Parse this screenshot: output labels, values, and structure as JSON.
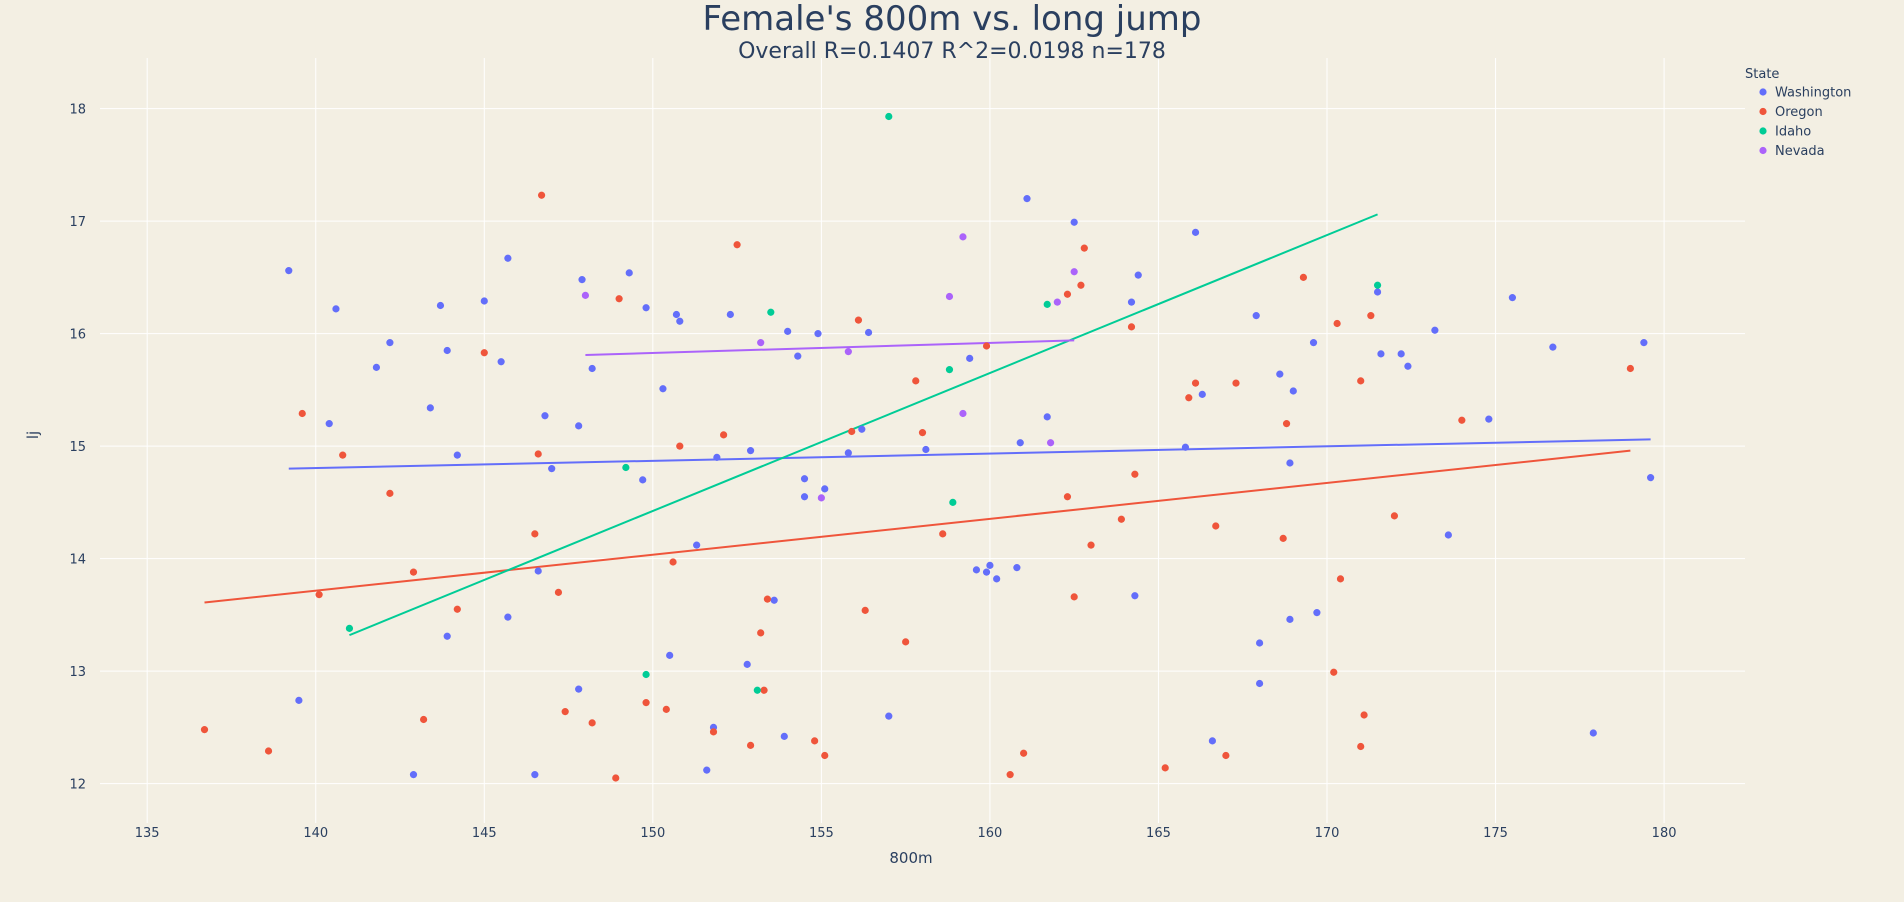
{
  "chart_data": {
    "type": "scatter",
    "title": "Female's 800m vs. long jump",
    "subtitle": "Overall R=0.1407 R^2=0.0198 n=178",
    "xlabel": "800m",
    "ylabel": "lj",
    "xlim": [
      133.6,
      182.4
    ],
    "ylim": [
      11.65,
      18.45
    ],
    "xticks": [
      135,
      140,
      145,
      150,
      155,
      160,
      165,
      170,
      175,
      180
    ],
    "yticks": [
      12,
      13,
      14,
      15,
      16,
      17,
      18
    ],
    "grid": true,
    "legend_title": "State",
    "legend_position": "top-right",
    "series": [
      {
        "name": "Washington",
        "color": "#636efa",
        "points": [
          [
            139.2,
            16.56
          ],
          [
            139.5,
            12.74
          ],
          [
            140.4,
            15.2
          ],
          [
            140.6,
            16.22
          ],
          [
            141.8,
            15.7
          ],
          [
            142.2,
            15.92
          ],
          [
            142.9,
            12.08
          ],
          [
            143.4,
            15.34
          ],
          [
            143.7,
            16.25
          ],
          [
            143.9,
            15.85
          ],
          [
            143.9,
            13.31
          ],
          [
            144.2,
            14.92
          ],
          [
            145.0,
            16.29
          ],
          [
            145.5,
            15.75
          ],
          [
            145.7,
            16.67
          ],
          [
            145.7,
            13.48
          ],
          [
            146.5,
            12.08
          ],
          [
            146.6,
            13.89
          ],
          [
            146.8,
            15.27
          ],
          [
            147.0,
            14.8
          ],
          [
            147.8,
            12.84
          ],
          [
            147.8,
            15.18
          ],
          [
            147.9,
            16.48
          ],
          [
            148.2,
            15.69
          ],
          [
            149.3,
            16.54
          ],
          [
            149.7,
            14.7
          ],
          [
            149.8,
            16.23
          ],
          [
            150.3,
            15.51
          ],
          [
            150.5,
            13.14
          ],
          [
            150.7,
            16.17
          ],
          [
            150.8,
            16.11
          ],
          [
            151.3,
            14.12
          ],
          [
            151.6,
            12.12
          ],
          [
            151.8,
            12.5
          ],
          [
            151.9,
            14.9
          ],
          [
            152.3,
            16.17
          ],
          [
            152.8,
            13.06
          ],
          [
            152.9,
            14.96
          ],
          [
            153.6,
            13.63
          ],
          [
            153.9,
            12.42
          ],
          [
            154.0,
            16.02
          ],
          [
            154.3,
            15.8
          ],
          [
            154.5,
            14.71
          ],
          [
            154.5,
            14.55
          ],
          [
            154.9,
            16.0
          ],
          [
            155.1,
            14.62
          ],
          [
            155.8,
            14.94
          ],
          [
            156.2,
            15.15
          ],
          [
            156.4,
            16.01
          ],
          [
            157.0,
            12.6
          ],
          [
            158.1,
            14.97
          ],
          [
            159.4,
            15.78
          ],
          [
            159.6,
            13.9
          ],
          [
            159.9,
            13.88
          ],
          [
            160.0,
            13.94
          ],
          [
            160.2,
            13.82
          ],
          [
            160.8,
            13.92
          ],
          [
            160.9,
            15.03
          ],
          [
            161.1,
            17.2
          ],
          [
            161.7,
            15.26
          ],
          [
            162.5,
            16.99
          ],
          [
            164.2,
            16.28
          ],
          [
            164.3,
            13.67
          ],
          [
            164.4,
            16.52
          ],
          [
            165.8,
            14.99
          ],
          [
            166.1,
            16.9
          ],
          [
            166.3,
            15.46
          ],
          [
            166.6,
            12.38
          ],
          [
            167.9,
            16.16
          ],
          [
            168.0,
            13.25
          ],
          [
            168.0,
            12.89
          ],
          [
            168.6,
            15.64
          ],
          [
            168.9,
            14.85
          ],
          [
            168.9,
            13.46
          ],
          [
            169.0,
            15.49
          ],
          [
            169.6,
            15.92
          ],
          [
            169.7,
            13.52
          ],
          [
            171.5,
            16.37
          ],
          [
            171.6,
            15.82
          ],
          [
            172.2,
            15.82
          ],
          [
            172.4,
            15.71
          ],
          [
            173.2,
            16.03
          ],
          [
            173.6,
            14.21
          ],
          [
            174.8,
            15.24
          ],
          [
            175.5,
            16.32
          ],
          [
            176.7,
            15.88
          ],
          [
            177.9,
            12.45
          ],
          [
            179.4,
            15.92
          ],
          [
            179.6,
            14.72
          ]
        ]
      },
      {
        "name": "Oregon",
        "color": "#ef553b",
        "points": [
          [
            136.7,
            12.48
          ],
          [
            138.6,
            12.29
          ],
          [
            139.6,
            15.29
          ],
          [
            140.1,
            13.68
          ],
          [
            140.8,
            14.92
          ],
          [
            142.2,
            14.58
          ],
          [
            142.9,
            13.88
          ],
          [
            143.2,
            12.57
          ],
          [
            144.2,
            13.55
          ],
          [
            145.0,
            15.83
          ],
          [
            146.5,
            14.22
          ],
          [
            146.6,
            14.93
          ],
          [
            146.7,
            17.23
          ],
          [
            147.2,
            13.7
          ],
          [
            147.4,
            12.64
          ],
          [
            148.2,
            12.54
          ],
          [
            148.9,
            12.05
          ],
          [
            149.0,
            16.31
          ],
          [
            149.8,
            12.72
          ],
          [
            150.4,
            12.66
          ],
          [
            150.6,
            13.97
          ],
          [
            150.8,
            15.0
          ],
          [
            151.8,
            12.46
          ],
          [
            152.1,
            15.1
          ],
          [
            152.5,
            16.79
          ],
          [
            152.9,
            12.34
          ],
          [
            153.2,
            13.34
          ],
          [
            153.3,
            12.83
          ],
          [
            153.4,
            13.64
          ],
          [
            154.8,
            12.38
          ],
          [
            155.1,
            12.25
          ],
          [
            155.9,
            15.13
          ],
          [
            156.1,
            16.12
          ],
          [
            156.3,
            13.54
          ],
          [
            157.5,
            13.26
          ],
          [
            157.8,
            15.58
          ],
          [
            158.0,
            15.12
          ],
          [
            158.6,
            14.22
          ],
          [
            159.9,
            15.89
          ],
          [
            160.6,
            12.08
          ],
          [
            161.0,
            12.27
          ],
          [
            162.3,
            16.35
          ],
          [
            162.3,
            14.55
          ],
          [
            162.5,
            13.66
          ],
          [
            162.7,
            16.43
          ],
          [
            162.8,
            16.76
          ],
          [
            163.0,
            14.12
          ],
          [
            163.9,
            14.35
          ],
          [
            164.2,
            16.06
          ],
          [
            164.3,
            14.75
          ],
          [
            165.2,
            12.14
          ],
          [
            165.9,
            15.43
          ],
          [
            166.1,
            15.56
          ],
          [
            166.7,
            14.29
          ],
          [
            167.0,
            12.25
          ],
          [
            167.3,
            15.56
          ],
          [
            168.7,
            14.18
          ],
          [
            168.8,
            15.2
          ],
          [
            169.3,
            16.5
          ],
          [
            170.2,
            12.99
          ],
          [
            170.3,
            16.09
          ],
          [
            170.4,
            13.82
          ],
          [
            171.0,
            15.58
          ],
          [
            171.0,
            12.33
          ],
          [
            171.1,
            12.61
          ],
          [
            171.3,
            16.16
          ],
          [
            172.0,
            14.38
          ],
          [
            174.0,
            15.23
          ],
          [
            179.0,
            15.69
          ]
        ]
      },
      {
        "name": "Idaho",
        "color": "#00cc96",
        "points": [
          [
            141.0,
            13.38
          ],
          [
            149.2,
            14.81
          ],
          [
            149.8,
            12.97
          ],
          [
            153.1,
            12.83
          ],
          [
            153.5,
            16.19
          ],
          [
            157.0,
            17.93
          ],
          [
            158.8,
            15.68
          ],
          [
            158.9,
            14.5
          ],
          [
            161.7,
            16.26
          ],
          [
            171.5,
            16.43
          ]
        ]
      },
      {
        "name": "Nevada",
        "color": "#ab63fa",
        "points": [
          [
            148.0,
            16.34
          ],
          [
            153.2,
            15.92
          ],
          [
            155.0,
            14.54
          ],
          [
            155.8,
            15.84
          ],
          [
            158.8,
            16.33
          ],
          [
            159.2,
            16.86
          ],
          [
            159.2,
            15.29
          ],
          [
            161.8,
            15.03
          ],
          [
            162.0,
            16.28
          ],
          [
            162.5,
            16.55
          ]
        ]
      }
    ],
    "trendlines": [
      {
        "name": "Washington",
        "color": "#636efa",
        "x": [
          139.2,
          179.6
        ],
        "y": [
          14.8,
          15.06
        ]
      },
      {
        "name": "Oregon",
        "color": "#ef553b",
        "x": [
          136.7,
          179.0
        ],
        "y": [
          13.61,
          14.96
        ]
      },
      {
        "name": "Idaho",
        "color": "#00cc96",
        "x": [
          141.0,
          171.5
        ],
        "y": [
          13.32,
          17.06
        ]
      },
      {
        "name": "Nevada",
        "color": "#ab63fa",
        "x": [
          148.0,
          162.5
        ],
        "y": [
          15.81,
          15.94
        ]
      }
    ]
  }
}
